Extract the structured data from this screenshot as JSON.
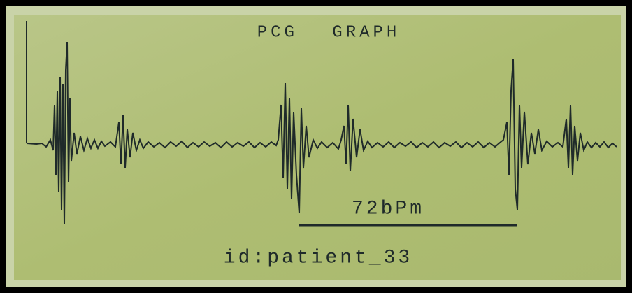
{
  "title": "PCG GRAPH",
  "heart_rate": "72bPm",
  "patient_id": "id:patient_33"
}
